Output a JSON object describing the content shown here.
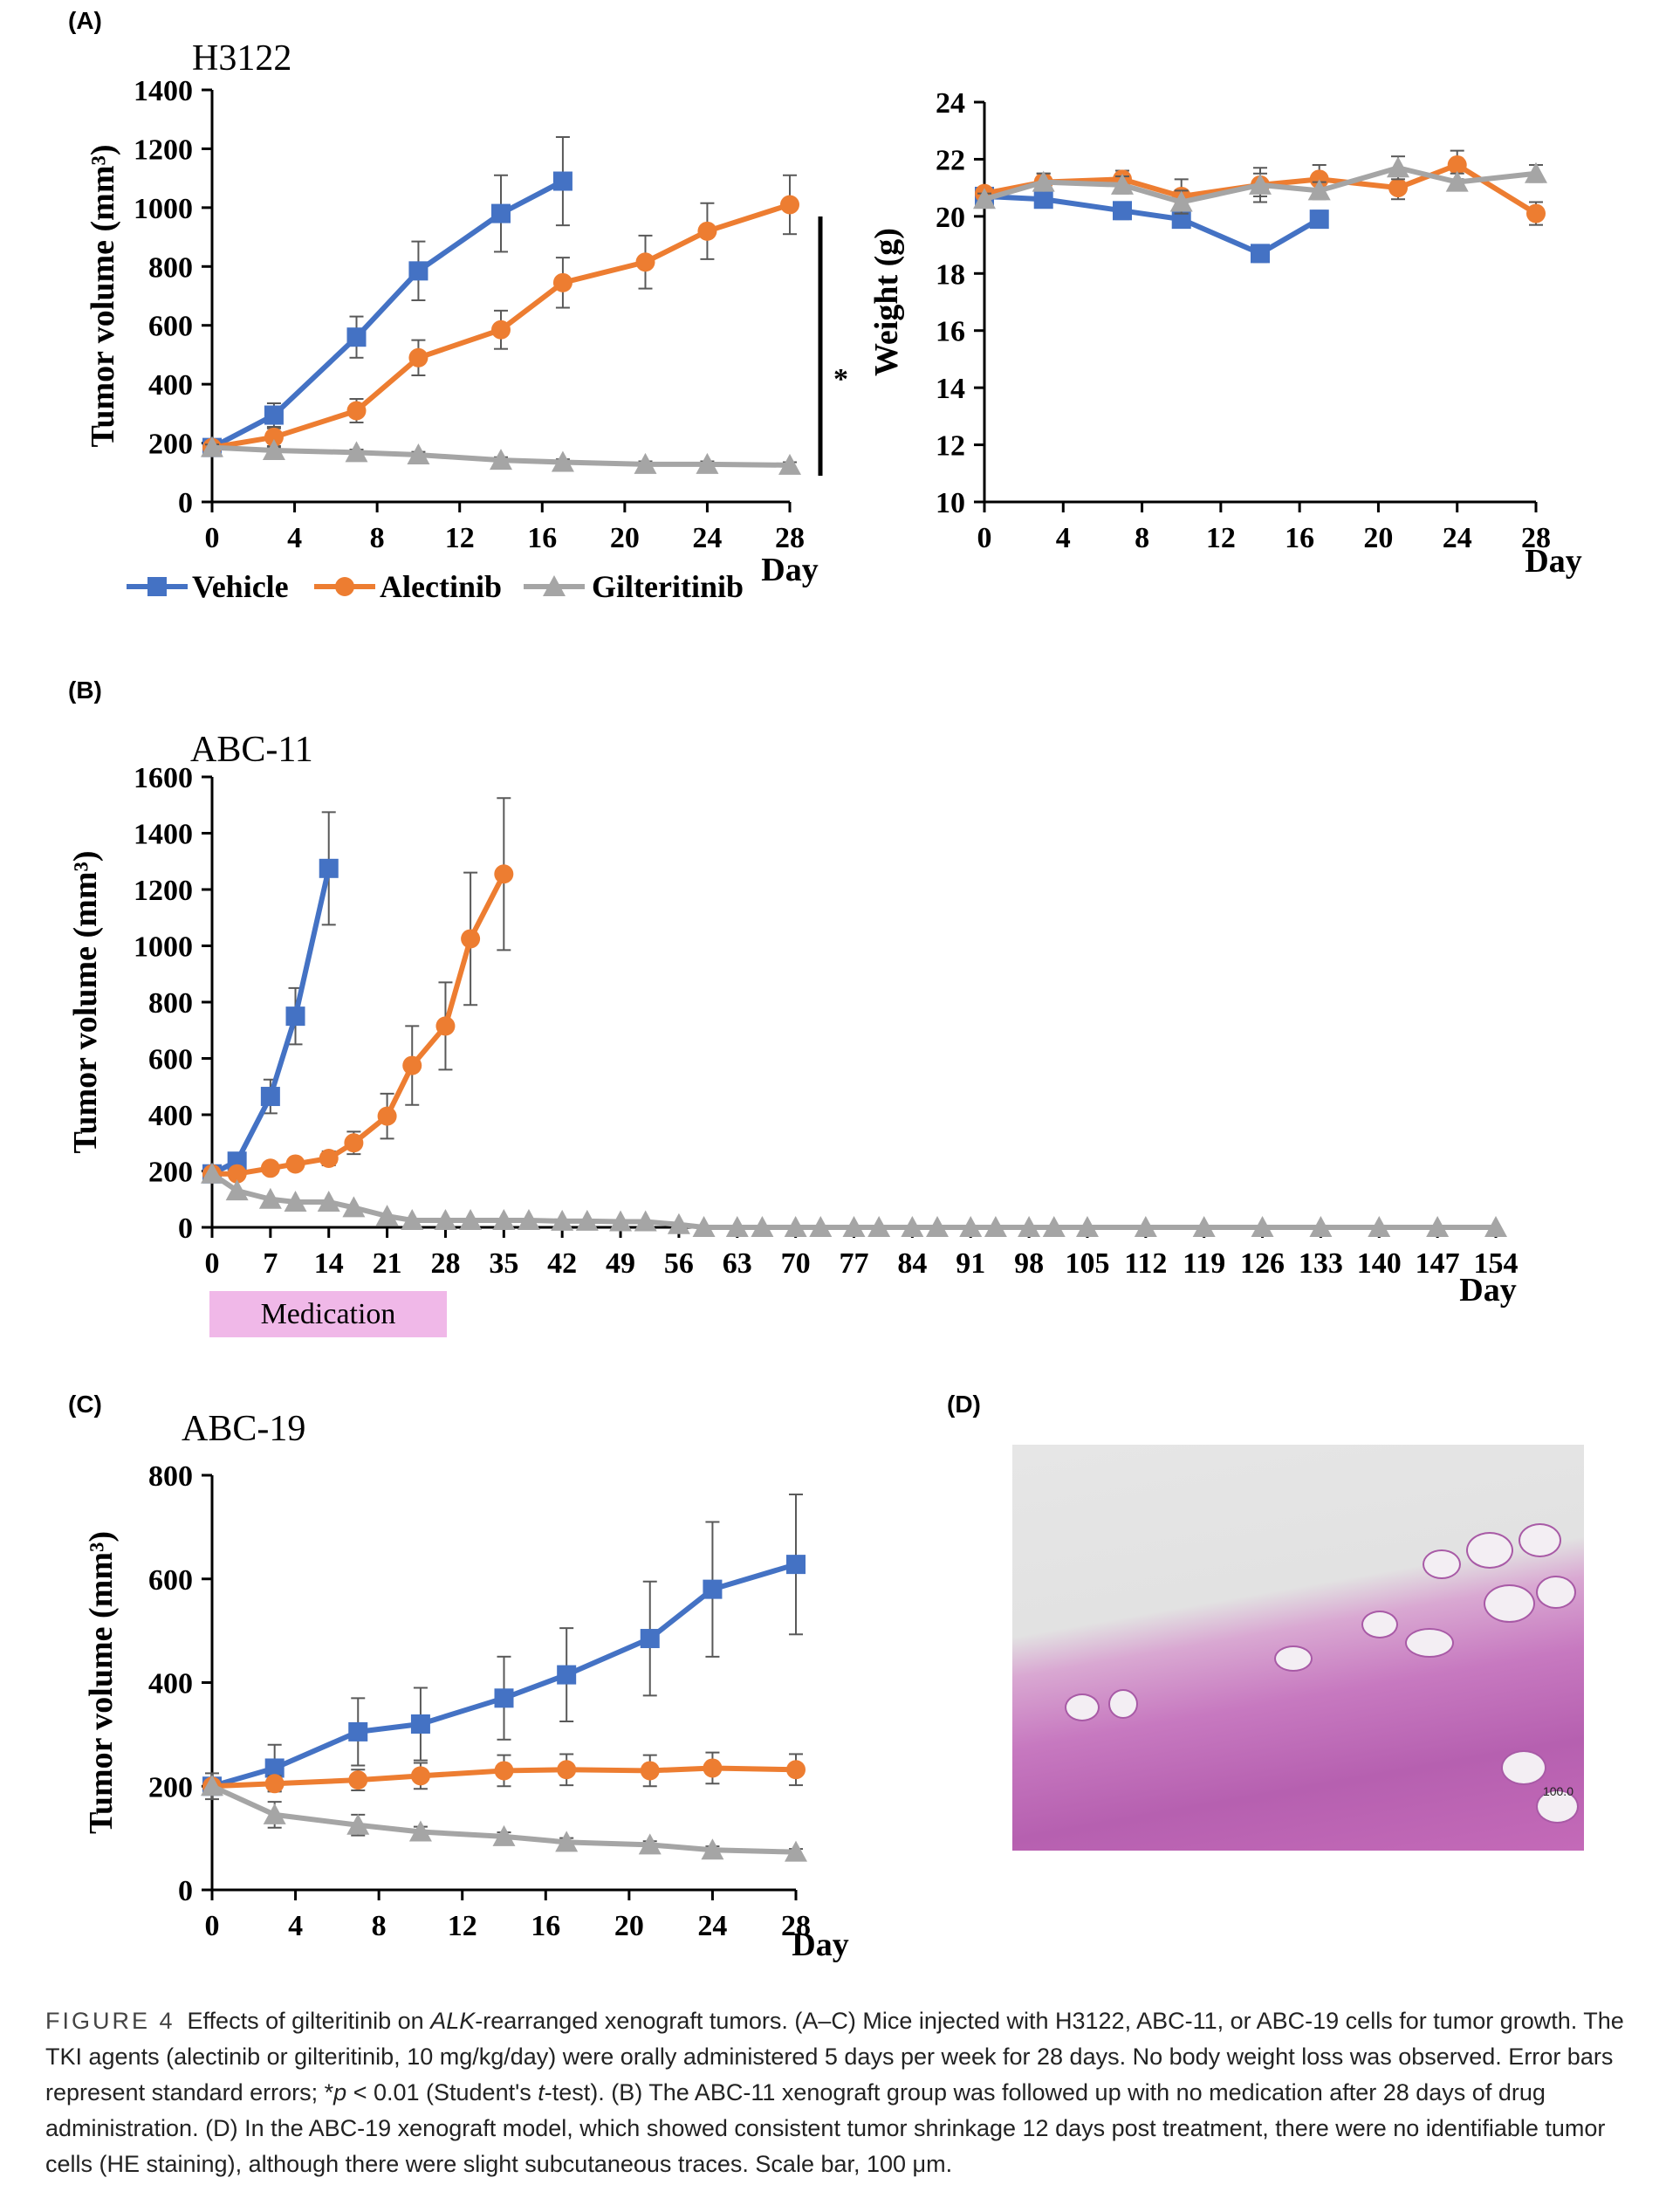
{
  "panels": {
    "a": "(A)",
    "b": "(B)",
    "c": "(C)",
    "d": "(D)"
  },
  "legend": {
    "vehicle": "Vehicle",
    "alectinib": "Alectinib",
    "gilteritinib": "Gilteritinib"
  },
  "significance": "*",
  "medication_label": "Medication",
  "micrograph_scale": "100.0",
  "colors": {
    "vehicle": "#4472C4",
    "alectinib": "#ED7D31",
    "gilteritinib": "#A5A5A5"
  },
  "chart_data": [
    {
      "id": "a-volume",
      "type": "line",
      "title": "H3122",
      "xlabel": "Day",
      "ylabel": "Tumor volume (mm³)",
      "xlim": [
        0,
        28
      ],
      "ylim": [
        0,
        1400
      ],
      "xticks": [
        0,
        4,
        8,
        12,
        16,
        20,
        24,
        28
      ],
      "yticks": [
        0,
        200,
        400,
        600,
        800,
        1000,
        1200,
        1400
      ],
      "series": [
        {
          "name": "Vehicle",
          "x": [
            0,
            3,
            7,
            10,
            14,
            17
          ],
          "values": [
            185,
            295,
            560,
            785,
            980,
            1090
          ],
          "err": [
            15,
            40,
            70,
            100,
            130,
            150
          ]
        },
        {
          "name": "Alectinib",
          "x": [
            0,
            3,
            7,
            10,
            14,
            17,
            21,
            24,
            28
          ],
          "values": [
            185,
            220,
            310,
            490,
            585,
            745,
            815,
            920,
            1010
          ],
          "err": [
            15,
            30,
            40,
            60,
            65,
            85,
            90,
            95,
            100
          ]
        },
        {
          "name": "Gilteritinib",
          "x": [
            0,
            3,
            7,
            10,
            14,
            17,
            21,
            24,
            28
          ],
          "values": [
            185,
            175,
            168,
            160,
            142,
            135,
            128,
            128,
            125
          ],
          "err": [
            10,
            10,
            10,
            10,
            10,
            10,
            10,
            10,
            10
          ]
        }
      ]
    },
    {
      "id": "a-weight",
      "type": "line",
      "xlabel": "Day",
      "ylabel": "Weight (g)",
      "xlim": [
        0,
        28
      ],
      "ylim": [
        10,
        24
      ],
      "xticks": [
        0,
        4,
        8,
        12,
        16,
        20,
        24,
        28
      ],
      "yticks": [
        10,
        12,
        14,
        16,
        18,
        20,
        22,
        24
      ],
      "series": [
        {
          "name": "Vehicle",
          "x": [
            0,
            3,
            7,
            10,
            14,
            17
          ],
          "values": [
            20.7,
            20.6,
            20.2,
            19.9,
            18.7,
            19.9
          ],
          "err": [
            0.2,
            0.3,
            0.3,
            0.3,
            0.3,
            0.3
          ]
        },
        {
          "name": "Alectinib",
          "x": [
            0,
            3,
            7,
            10,
            14,
            17,
            21,
            24,
            28
          ],
          "values": [
            20.8,
            21.2,
            21.3,
            20.7,
            21.1,
            21.3,
            21.0,
            21.8,
            20.1
          ],
          "err": [
            0.2,
            0.3,
            0.3,
            0.6,
            0.6,
            0.5,
            0.4,
            0.5,
            0.4
          ]
        },
        {
          "name": "Gilteritinib",
          "x": [
            0,
            3,
            7,
            10,
            14,
            17,
            21,
            24,
            28
          ],
          "values": [
            20.6,
            21.2,
            21.1,
            20.5,
            21.1,
            20.9,
            21.7,
            21.2,
            21.5
          ],
          "err": [
            0.2,
            0.3,
            0.3,
            0.4,
            0.4,
            0.3,
            0.4,
            0.3,
            0.3
          ]
        }
      ]
    },
    {
      "id": "b-volume",
      "type": "line",
      "title": "ABC-11",
      "xlabel": "Day",
      "ylabel": "Tumor volume (mm³)",
      "xlim": [
        0,
        154
      ],
      "ylim": [
        0,
        1600
      ],
      "xticks": [
        0,
        7,
        14,
        21,
        28,
        35,
        42,
        49,
        56,
        63,
        70,
        77,
        84,
        91,
        98,
        105,
        112,
        119,
        126,
        133,
        140,
        147,
        154
      ],
      "yticks": [
        0,
        200,
        400,
        600,
        800,
        1000,
        1200,
        1400,
        1600
      ],
      "series": [
        {
          "name": "Vehicle",
          "x": [
            0,
            3,
            7,
            10,
            14
          ],
          "values": [
            190,
            235,
            465,
            750,
            1275
          ],
          "err": [
            15,
            30,
            60,
            100,
            200
          ]
        },
        {
          "name": "Alectinib",
          "x": [
            0,
            3,
            7,
            10,
            14,
            17,
            21,
            24,
            28,
            31,
            35
          ],
          "values": [
            190,
            190,
            210,
            225,
            245,
            300,
            395,
            575,
            715,
            1025,
            1255
          ],
          "err": [
            15,
            15,
            20,
            20,
            25,
            40,
            80,
            140,
            155,
            235,
            270
          ]
        },
        {
          "name": "Gilteritinib",
          "x": [
            0,
            3,
            7,
            10,
            14,
            17,
            21,
            24,
            28,
            31,
            35,
            38,
            42,
            45,
            49,
            52,
            56,
            59,
            63,
            66,
            70,
            73,
            77,
            80,
            84,
            87,
            91,
            94,
            98,
            101,
            105,
            112,
            119,
            126,
            133,
            140,
            147,
            154
          ],
          "values": [
            190,
            130,
            100,
            90,
            90,
            70,
            40,
            25,
            25,
            25,
            25,
            25,
            22,
            22,
            20,
            20,
            10,
            0,
            0,
            0,
            0,
            0,
            0,
            0,
            0,
            0,
            0,
            0,
            0,
            0,
            0,
            0,
            0,
            0,
            0,
            0,
            0,
            0
          ],
          "err": []
        }
      ]
    },
    {
      "id": "c-volume",
      "type": "line",
      "title": "ABC-19",
      "xlabel": "Day",
      "ylabel": "Tumor volume (mm³)",
      "xlim": [
        0,
        28
      ],
      "ylim": [
        0,
        800
      ],
      "xticks": [
        0,
        4,
        8,
        12,
        16,
        20,
        24,
        28
      ],
      "yticks": [
        0,
        200,
        400,
        600,
        800
      ],
      "series": [
        {
          "name": "Vehicle",
          "x": [
            0,
            3,
            7,
            10,
            14,
            17,
            21,
            24,
            28
          ],
          "values": [
            200,
            235,
            305,
            320,
            370,
            415,
            485,
            580,
            628
          ],
          "err": [
            10,
            45,
            65,
            70,
            80,
            90,
            110,
            130,
            135
          ]
        },
        {
          "name": "Alectinib",
          "x": [
            0,
            3,
            7,
            10,
            14,
            17,
            21,
            24,
            28
          ],
          "values": [
            200,
            205,
            212,
            220,
            230,
            232,
            230,
            235,
            232
          ],
          "err": [
            10,
            15,
            20,
            25,
            30,
            30,
            30,
            30,
            30
          ]
        },
        {
          "name": "Gilteritinib",
          "x": [
            0,
            3,
            7,
            10,
            14,
            17,
            21,
            24,
            28
          ],
          "values": [
            200,
            145,
            125,
            112,
            103,
            92,
            87,
            77,
            73
          ],
          "err": [
            25,
            25,
            20,
            10,
            8,
            8,
            7,
            7,
            6
          ]
        }
      ]
    }
  ],
  "caption": {
    "fig": "FIGURE 4",
    "t1": "Effects of gilteritinib on ",
    "t2": "ALK",
    "t3": "-rearranged xenograft tumors. (A–C) Mice injected with H3122, ABC-11, or ABC-19 cells for tumor growth. The TKI agents (alectinib or gilteritinib, 10 mg/kg/day) were orally administered 5 days per week for 28 days. No body weight loss was observed. Error bars represent standard errors; *",
    "t4": "p",
    "t5": " < 0.01 (Student's ",
    "t6": "t",
    "t7": "-test). (B) The ABC-11 xenograft group was followed up with no medication after 28 days of drug administration. (D) In the ABC-19 xenograft model, which showed consistent tumor shrinkage 12 days post treatment, there were no identifiable tumor cells (HE staining), although there were slight subcutaneous traces. Scale bar, 100 μm."
  }
}
